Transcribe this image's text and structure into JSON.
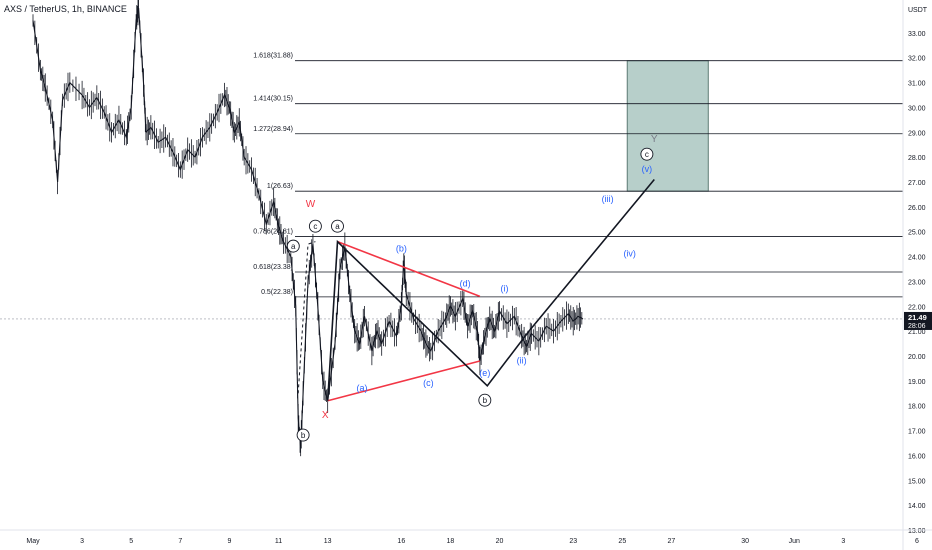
{
  "header": {
    "title": "AXS / TetherUS, 1h, BINANCE"
  },
  "colors": {
    "candles": "#131722",
    "wave_label_blue": "#2962ff",
    "wave_label_red": "#f23645",
    "triangle": "#f23645",
    "fib_line": "#131722",
    "target_box": "#b7cfca",
    "price_label_bg": "#131722"
  },
  "chart_data": {
    "type": "line",
    "title": "AXS / TetherUS, 1h, BINANCE",
    "xlabel": "",
    "ylabel": "",
    "unit_label": "USDT",
    "ylim": [
      13.0,
      34.0
    ],
    "x_ticks": [
      {
        "label": "May",
        "day": 1
      },
      {
        "label": "3",
        "day": 3
      },
      {
        "label": "5",
        "day": 5
      },
      {
        "label": "7",
        "day": 7
      },
      {
        "label": "9",
        "day": 9
      },
      {
        "label": "11",
        "day": 11
      },
      {
        "label": "13",
        "day": 13
      },
      {
        "label": "16",
        "day": 16
      },
      {
        "label": "18",
        "day": 18
      },
      {
        "label": "20",
        "day": 20
      },
      {
        "label": "23",
        "day": 23
      },
      {
        "label": "25",
        "day": 25
      },
      {
        "label": "27",
        "day": 27
      },
      {
        "label": "30",
        "day": 30
      },
      {
        "label": "Jun",
        "day": 32
      },
      {
        "label": "3",
        "day": 34
      },
      {
        "label": "6",
        "day": 37
      }
    ],
    "y_ticks": [
      "33.00",
      "32.00",
      "31.00",
      "30.00",
      "29.00",
      "28.00",
      "27.00",
      "26.00",
      "25.00",
      "24.00",
      "23.00",
      "22.00",
      "21.00",
      "20.00",
      "19.00",
      "18.00",
      "17.00",
      "16.00",
      "15.00",
      "14.00",
      "13.00"
    ],
    "current_price": "21.49",
    "countdown": "28:06",
    "price_series": {
      "name": "",
      "points": [
        [
          1.0,
          33.5
        ],
        [
          1.3,
          31.5
        ],
        [
          1.5,
          30.8
        ],
        [
          1.8,
          29.5
        ],
        [
          2.0,
          27.0
        ],
        [
          2.2,
          30.3
        ],
        [
          2.5,
          31.0
        ],
        [
          3.0,
          30.5
        ],
        [
          3.3,
          30.0
        ],
        [
          3.6,
          30.4
        ],
        [
          3.9,
          29.8
        ],
        [
          4.2,
          29.0
        ],
        [
          4.5,
          29.5
        ],
        [
          4.8,
          28.8
        ],
        [
          5.0,
          30.0
        ],
        [
          5.2,
          33.5
        ],
        [
          5.3,
          34.0
        ],
        [
          5.5,
          31.0
        ],
        [
          5.6,
          29.0
        ],
        [
          5.8,
          29.2
        ],
        [
          6.1,
          28.6
        ],
        [
          6.4,
          28.8
        ],
        [
          6.7,
          28.2
        ],
        [
          7.0,
          27.5
        ],
        [
          7.3,
          28.3
        ],
        [
          7.6,
          28.0
        ],
        [
          7.9,
          28.8
        ],
        [
          8.2,
          29.2
        ],
        [
          8.5,
          29.8
        ],
        [
          8.8,
          30.5
        ],
        [
          9.0,
          30.0
        ],
        [
          9.2,
          29.0
        ],
        [
          9.4,
          29.4
        ],
        [
          9.6,
          28.0
        ],
        [
          9.9,
          27.5
        ],
        [
          10.2,
          26.5
        ],
        [
          10.5,
          25.3
        ],
        [
          10.8,
          26.2
        ],
        [
          11.0,
          25.2
        ],
        [
          11.2,
          24.6
        ],
        [
          11.5,
          24.0
        ],
        [
          11.7,
          22.0
        ],
        [
          11.8,
          17.5
        ],
        [
          11.9,
          16.3
        ],
        [
          12.0,
          18.5
        ],
        [
          12.2,
          23.0
        ],
        [
          12.4,
          24.5
        ],
        [
          12.6,
          22.0
        ],
        [
          12.8,
          19.0
        ],
        [
          13.0,
          18.2
        ],
        [
          13.3,
          20.5
        ],
        [
          13.5,
          23.5
        ],
        [
          13.7,
          24.4
        ],
        [
          13.9,
          22.5
        ],
        [
          14.1,
          21.0
        ],
        [
          14.3,
          20.5
        ],
        [
          14.5,
          21.6
        ],
        [
          14.8,
          20.2
        ],
        [
          15.0,
          21.0
        ],
        [
          15.2,
          20.5
        ],
        [
          15.5,
          21.4
        ],
        [
          15.8,
          20.8
        ],
        [
          16.0,
          22.0
        ],
        [
          16.1,
          23.8
        ],
        [
          16.2,
          22.5
        ],
        [
          16.5,
          21.5
        ],
        [
          16.8,
          21.0
        ],
        [
          17.0,
          20.5
        ],
        [
          17.2,
          20.2
        ],
        [
          17.5,
          21.0
        ],
        [
          17.8,
          21.5
        ],
        [
          18.0,
          22.0
        ],
        [
          18.2,
          21.6
        ],
        [
          18.5,
          22.3
        ],
        [
          18.7,
          21.2
        ],
        [
          18.9,
          21.8
        ],
        [
          19.1,
          21.0
        ],
        [
          19.2,
          19.8
        ],
        [
          19.4,
          20.8
        ],
        [
          19.6,
          21.5
        ],
        [
          19.8,
          21.0
        ],
        [
          20.0,
          21.8
        ],
        [
          20.3,
          21.3
        ],
        [
          20.6,
          21.6
        ],
        [
          20.9,
          20.8
        ],
        [
          21.1,
          20.4
        ],
        [
          21.3,
          20.9
        ],
        [
          21.6,
          20.6
        ],
        [
          21.9,
          21.2
        ],
        [
          22.2,
          21.0
        ],
        [
          22.5,
          21.4
        ],
        [
          22.8,
          21.7
        ],
        [
          23.0,
          21.4
        ],
        [
          23.2,
          21.6
        ],
        [
          23.4,
          21.49
        ]
      ]
    },
    "fib_levels": [
      {
        "label": "1.618(31.88)",
        "value": 31.88
      },
      {
        "label": "1.414(30.15)",
        "value": 30.15
      },
      {
        "label": "1.272(28.94)",
        "value": 28.94
      },
      {
        "label": "1(26.63)",
        "value": 26.63
      },
      {
        "label": "0.786(24.81)",
        "value": 24.81
      },
      {
        "label": "0.618(23.38)",
        "value": 23.38
      },
      {
        "label": "0.5(22.38)",
        "value": 22.38
      }
    ],
    "target_zone": {
      "day_start": 25.2,
      "day_end": 28.5,
      "y_low": 26.63,
      "y_high": 31.88
    },
    "wave_path": [
      {
        "day": 13.0,
        "y": 18.2
      },
      {
        "day": 13.4,
        "y": 24.6
      },
      {
        "day": 19.5,
        "y": 18.8
      },
      {
        "day": 21.2,
        "y": 21.0
      },
      {
        "day": 26.3,
        "y": 27.1
      }
    ],
    "triangle": {
      "upper": [
        {
          "day": 13.4,
          "y": 24.6
        },
        {
          "day": 19.2,
          "y": 22.4
        }
      ],
      "lower": [
        {
          "day": 13.0,
          "y": 18.2
        },
        {
          "day": 19.2,
          "y": 19.8
        }
      ]
    },
    "dashed_path": [
      {
        "day": 11.8,
        "y": 18.5
      },
      {
        "day": 12.2,
        "y": 24.5
      },
      {
        "day": 12.5,
        "y": 24.6
      }
    ],
    "wave_labels": [
      {
        "text": "W",
        "day": 12.3,
        "y": 26.0,
        "style": "red"
      },
      {
        "text": "c",
        "day": 12.5,
        "y": 25.1,
        "style": "circle"
      },
      {
        "text": "a",
        "day": 11.6,
        "y": 24.3,
        "style": "circle"
      },
      {
        "text": "b",
        "day": 12.0,
        "y": 16.7,
        "style": "circle"
      },
      {
        "text": "X",
        "day": 12.9,
        "y": 17.5,
        "style": "red"
      },
      {
        "text": "a",
        "day": 13.4,
        "y": 25.1,
        "style": "circle"
      },
      {
        "text": "(b)",
        "day": 16.0,
        "y": 24.2,
        "style": "blue"
      },
      {
        "text": "(a)",
        "day": 14.4,
        "y": 18.6,
        "style": "blue"
      },
      {
        "text": "(c)",
        "day": 17.1,
        "y": 18.8,
        "style": "blue"
      },
      {
        "text": "(d)",
        "day": 18.6,
        "y": 22.8,
        "style": "blue"
      },
      {
        "text": "(e)",
        "day": 19.4,
        "y": 19.2,
        "style": "blue"
      },
      {
        "text": "b",
        "day": 19.4,
        "y": 18.1,
        "style": "circle"
      },
      {
        "text": "(i)",
        "day": 20.2,
        "y": 22.6,
        "style": "blue"
      },
      {
        "text": "(ii)",
        "day": 20.9,
        "y": 19.7,
        "style": "blue"
      },
      {
        "text": "(iii)",
        "day": 24.4,
        "y": 26.2,
        "style": "blue"
      },
      {
        "text": "(iv)",
        "day": 25.3,
        "y": 24.0,
        "style": "blue"
      },
      {
        "text": "(v)",
        "day": 26.0,
        "y": 27.4,
        "style": "blue"
      },
      {
        "text": "c",
        "day": 26.0,
        "y": 28.0,
        "style": "circle"
      },
      {
        "text": "Y",
        "day": 26.3,
        "y": 28.6,
        "style": "grey"
      }
    ]
  }
}
